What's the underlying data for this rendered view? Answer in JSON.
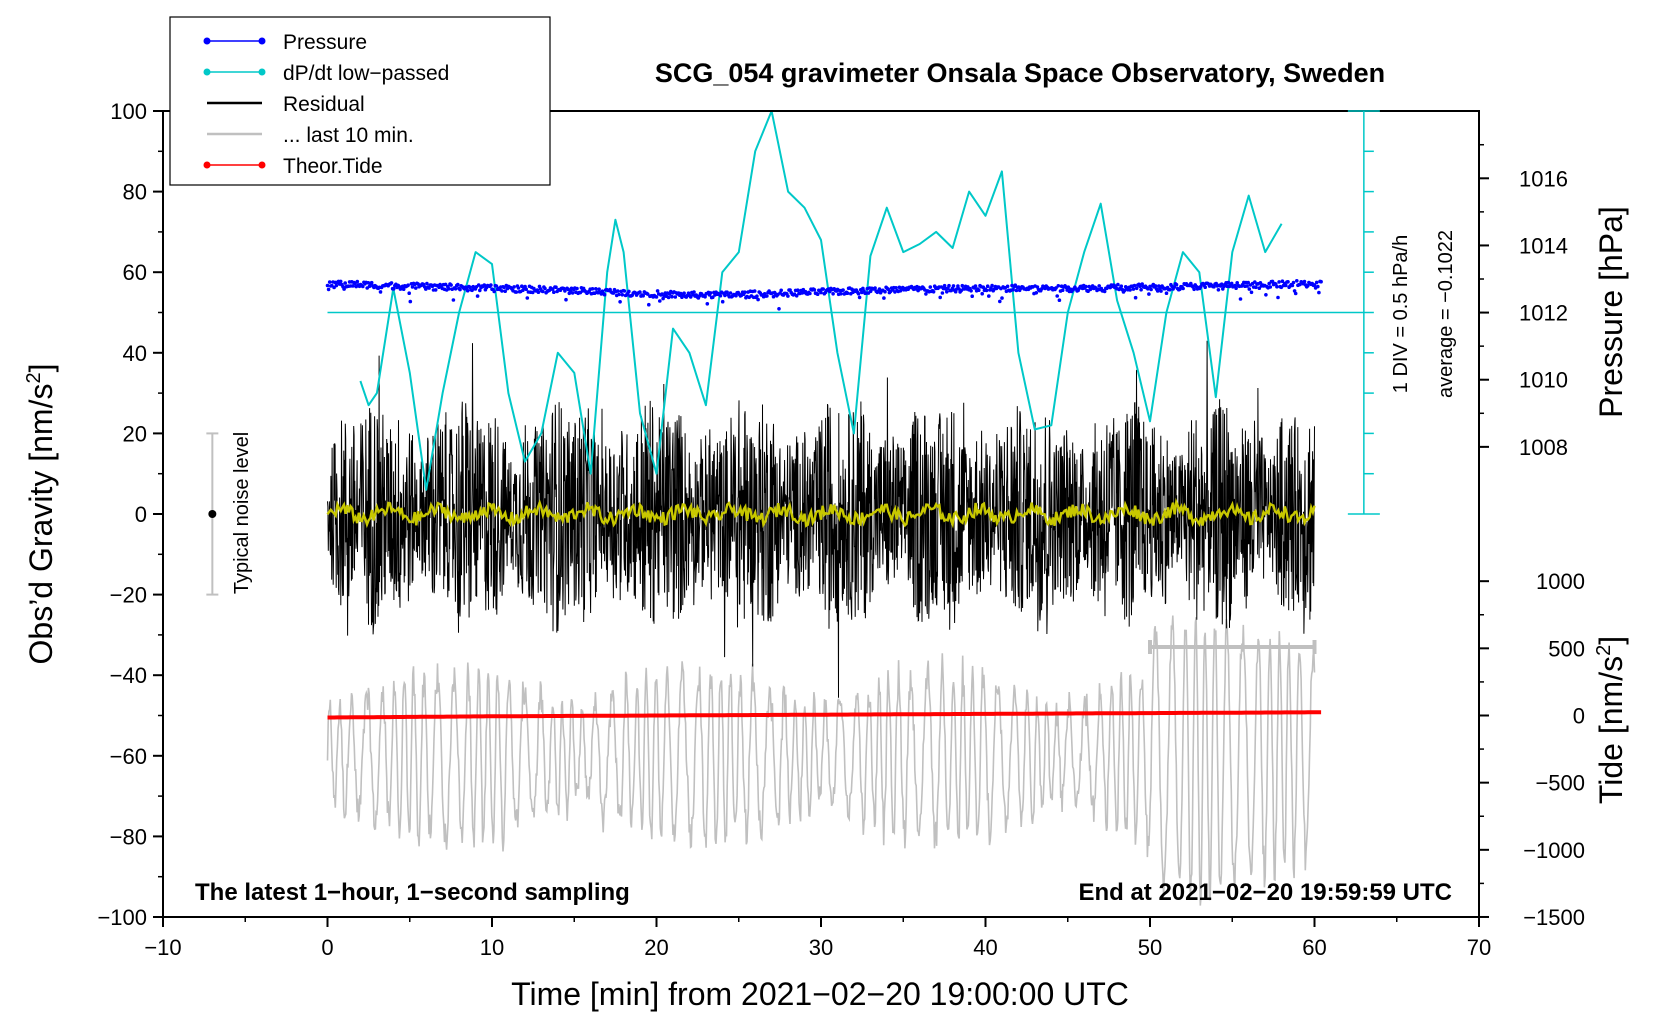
{
  "chart_data": {
    "type": "line",
    "title": "SCG_054 gravimeter Onsala Space Observatory, Sweden",
    "xlabel": "Time [min] from 2021−02−20 19:00:00 UTC",
    "ylabel_left": "Obs’d Gravity [nm/s",
    "ylabel_left_sup": "2",
    "ylabel_left_end": "]",
    "ylabel_pressure": "Pressure [hPa]",
    "ylabel_tide": "Tide [nm/s",
    "ylabel_tide_sup": "2",
    "ylabel_tide_end": "]",
    "xlim": [
      -10,
      70
    ],
    "ylim": [
      -100,
      100
    ],
    "x_ticks": [
      "−10",
      "0",
      "10",
      "20",
      "30",
      "40",
      "50",
      "60",
      "70"
    ],
    "x_tick_values": [
      -10,
      0,
      10,
      20,
      30,
      40,
      50,
      60,
      70
    ],
    "y_ticks": [
      "100",
      "80",
      "60",
      "40",
      "20",
      "0",
      "−20",
      "−40",
      "−60",
      "−80",
      "−100"
    ],
    "y_tick_values": [
      100,
      80,
      60,
      40,
      20,
      0,
      -20,
      -40,
      -60,
      -80,
      -100
    ],
    "pressure_axis": {
      "ticks": [
        "1016",
        "1014",
        "1012",
        "1010",
        "1008"
      ],
      "tick_values": [
        1016,
        1014,
        1012,
        1010,
        1008
      ],
      "map_value": 1016,
      "map_gravity": 83.3,
      "scale_gravity_per_hPa": 8.33
    },
    "tide_axis": {
      "ticks": [
        "1000",
        "500",
        "0",
        "−500",
        "−1000",
        "−1500"
      ],
      "tick_values": [
        1000,
        500,
        0,
        -500,
        -1000,
        -1500
      ],
      "gravity_at_zero": -50,
      "scale_gravity_per_unit": 0.03333
    },
    "legend": [
      {
        "label": "Pressure",
        "color": "#0000ff",
        "style": "line-dot"
      },
      {
        "label": "dP/dt low−passed",
        "color": "#00c8c8",
        "style": "line-dot"
      },
      {
        "label": "Residual",
        "color": "#000000",
        "style": "line"
      },
      {
        "label": "... last 10 min.",
        "color": "#c0c0c0",
        "style": "line"
      },
      {
        "label": "Theor.Tide",
        "color": "#ff0000",
        "style": "line-dot"
      }
    ],
    "annotations": {
      "noise_label": "Typical noise level",
      "noise_range": [
        -20,
        20
      ],
      "noise_x": -7,
      "dpdt_div": "1 DIV = 0.5 hPa/h",
      "dpdt_average": "average = −0.1022",
      "dpdt_axis_x": 63,
      "dpdt_axis_range": [
        0,
        100
      ],
      "dpdt_baseline": 50,
      "latest_note": "The latest 1−hour, 1−second sampling",
      "end_note": "End at 2021−02−20 19:59:59 UTC",
      "last10_range_minutes": [
        50,
        60
      ],
      "last10_marker_y": -33
    },
    "series": [
      {
        "name": "Pressure",
        "color": "#0000ff",
        "x": [
          0,
          5,
          10,
          15,
          20,
          22,
          25,
          30,
          35,
          40,
          45,
          50,
          55,
          60.4
        ],
        "y": [
          57.2,
          56.5,
          56.0,
          55.5,
          54.6,
          54.3,
          54.4,
          55.1,
          55.7,
          56.0,
          56.0,
          56.3,
          56.7,
          57.2
        ]
      },
      {
        "name": "dP/dt low-passed",
        "color": "#00c8c8",
        "x": [
          2,
          2.5,
          3,
          4,
          5,
          6,
          7,
          8,
          9,
          10,
          11,
          12,
          13,
          14,
          15,
          16,
          17,
          17.5,
          18,
          19,
          20,
          21,
          22,
          23,
          24,
          25,
          26,
          27,
          28,
          29,
          30,
          31,
          32,
          33,
          34,
          35,
          36,
          37,
          38,
          39,
          40,
          41,
          42,
          43,
          44,
          45,
          46,
          47,
          48,
          49,
          50,
          51,
          52,
          53,
          54,
          55,
          56,
          57,
          58
        ],
        "y": [
          33,
          27,
          30,
          56,
          35,
          6,
          30,
          50,
          65,
          62,
          30,
          13,
          20,
          40,
          35,
          10,
          60,
          73,
          65,
          25,
          10,
          46,
          40,
          27,
          60,
          65,
          90,
          100,
          80,
          76,
          68,
          40,
          20,
          64,
          76,
          65,
          67,
          70,
          66,
          80,
          74,
          85,
          40,
          21,
          22,
          50,
          65,
          77,
          53,
          40,
          23,
          50,
          65,
          60,
          29,
          65,
          79,
          65,
          72
        ]
      },
      {
        "name": "Residual",
        "color": "#000000",
        "x": [
          0,
          60
        ],
        "amplitude_range": [
          -45,
          43
        ],
        "y_center": 0
      },
      {
        "name": "... last 10 min.",
        "color": "#c0c0c0",
        "x": [
          0,
          60
        ],
        "offset": -60,
        "amplitude_range": [
          -90,
          -33
        ]
      },
      {
        "name": "Theor.Tide",
        "color": "#ff0000",
        "x": [
          0,
          10,
          20,
          30,
          40,
          50,
          60.4
        ],
        "y": [
          -50.5,
          -50.2,
          -50.0,
          -49.8,
          -49.6,
          -49.4,
          -49.2
        ]
      },
      {
        "name": "Residual smoothed",
        "color": "#c8c800",
        "x": [
          0,
          60
        ],
        "y_center": 0
      }
    ]
  },
  "colors": {
    "pressure": "#0000ff",
    "dpdt": "#00c8c8",
    "residual": "#000000",
    "last10": "#c0c0c0",
    "tide": "#ff0000",
    "smooth": "#c8c800",
    "noise": "#c0c0c0"
  }
}
